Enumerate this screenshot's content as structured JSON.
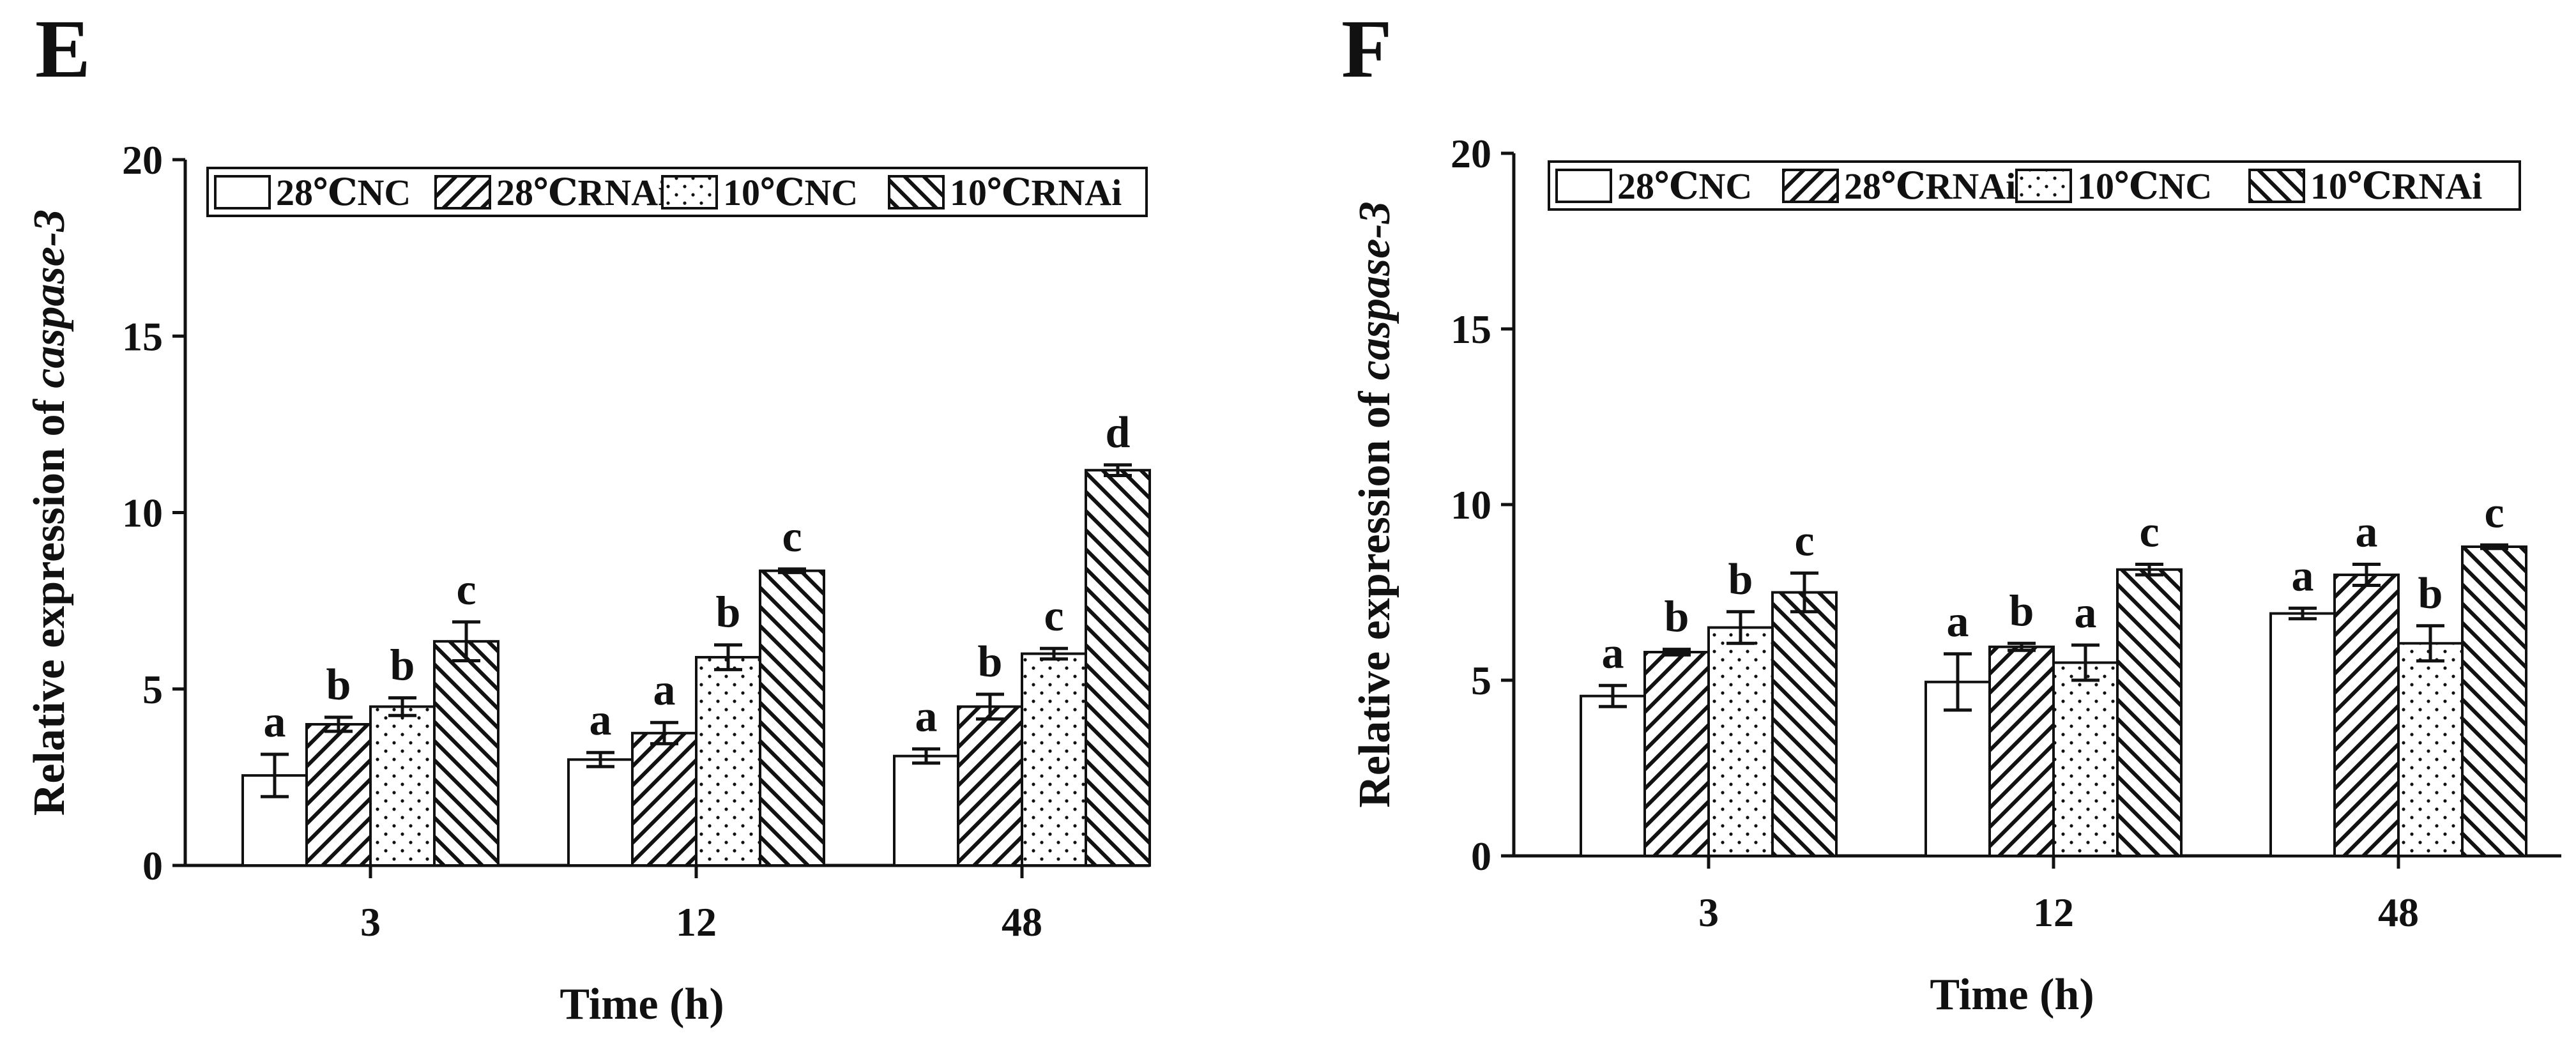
{
  "figure": {
    "panels": [
      "E",
      "F"
    ]
  },
  "chart_data": [
    {
      "panel": "E",
      "type": "bar",
      "title": "",
      "xlabel": "Time (h)",
      "ylabel_prefix": "Relative expression of ",
      "ylabel_gene": "caspase-3",
      "ylim": [
        0,
        20
      ],
      "yticks": [
        0,
        5,
        10,
        15,
        20
      ],
      "categories": [
        "3",
        "12",
        "48"
      ],
      "series": [
        {
          "name": "28℃NC",
          "pattern": "blank",
          "values": [
            2.55,
            3.0,
            3.1
          ],
          "errors": [
            0.6,
            0.2,
            0.2
          ],
          "labels": [
            "a",
            "a",
            "a"
          ]
        },
        {
          "name": "28℃RNAi",
          "pattern": "diag-fwd",
          "values": [
            4.0,
            3.75,
            4.5
          ],
          "errors": [
            0.2,
            0.3,
            0.35
          ],
          "labels": [
            "b",
            "a",
            "b"
          ]
        },
        {
          "name": "10℃NC",
          "pattern": "dots",
          "values": [
            4.5,
            5.9,
            6.0
          ],
          "errors": [
            0.25,
            0.35,
            0.15
          ],
          "labels": [
            "b",
            "b",
            "c"
          ]
        },
        {
          "name": "10℃RNAi",
          "pattern": "diag-back",
          "values": [
            6.35,
            8.35,
            11.2
          ],
          "errors": [
            0.55,
            0.05,
            0.15
          ],
          "labels": [
            "c",
            "c",
            "d"
          ]
        }
      ],
      "legend": "top-left"
    },
    {
      "panel": "F",
      "type": "bar",
      "title": "",
      "xlabel": "Time (h)",
      "ylabel_prefix": "Relative expression of ",
      "ylabel_gene": "caspase-3",
      "ylim": [
        0,
        20
      ],
      "yticks": [
        0,
        5,
        10,
        15,
        20
      ],
      "categories": [
        "3",
        "12",
        "48"
      ],
      "series": [
        {
          "name": "28℃NC",
          "pattern": "blank",
          "values": [
            4.55,
            4.95,
            6.9
          ],
          "errors": [
            0.3,
            0.8,
            0.15
          ],
          "labels": [
            "a",
            "a",
            "a"
          ]
        },
        {
          "name": "28℃RNAi",
          "pattern": "diag-fwd",
          "values": [
            5.8,
            5.95,
            8.0
          ],
          "errors": [
            0.08,
            0.1,
            0.3
          ],
          "labels": [
            "b",
            "b",
            "a"
          ]
        },
        {
          "name": "10℃NC",
          "pattern": "dots",
          "values": [
            6.5,
            5.5,
            6.05
          ],
          "errors": [
            0.45,
            0.5,
            0.5
          ],
          "labels": [
            "b",
            "a",
            "b"
          ]
        },
        {
          "name": "10℃RNAi",
          "pattern": "diag-back",
          "values": [
            7.5,
            8.15,
            8.8
          ],
          "errors": [
            0.55,
            0.15,
            0.05
          ],
          "labels": [
            "c",
            "c",
            "c"
          ]
        }
      ],
      "legend": "top-left"
    }
  ]
}
